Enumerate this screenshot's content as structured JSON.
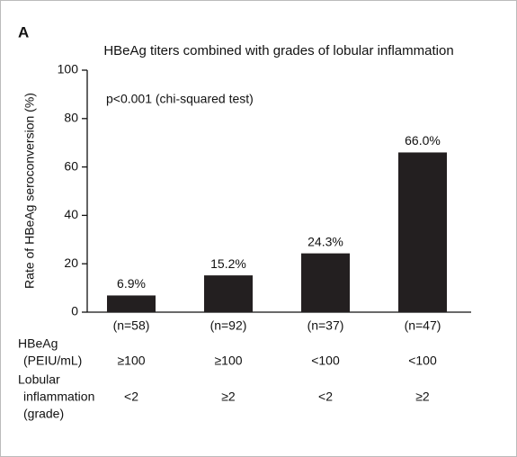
{
  "panel_label": "A",
  "chart_data": {
    "type": "bar",
    "title": "HBeAg titers combined with grades of lobular inflammation",
    "annotation": "p<0.001 (chi-squared test)",
    "y_label": "Rate of HBeAg seroconversion (%)",
    "categories": [
      "(n=58)",
      "(n=92)",
      "(n=37)",
      "(n=47)"
    ],
    "values": [
      6.9,
      15.2,
      24.3,
      66.0
    ],
    "value_labels": [
      "6.9%",
      "15.2%",
      "24.3%",
      "66.0%"
    ],
    "color": "#231f20",
    "ylim": [
      0,
      100
    ],
    "yticks": [
      0,
      20,
      40,
      60,
      80,
      100
    ]
  },
  "table_rows": [
    {
      "label_lines": [
        "HBeAg",
        "(PEIU/mL)"
      ],
      "cells": [
        "≥100",
        "≥100",
        "<100",
        "<100"
      ]
    },
    {
      "label_lines": [
        "Lobular",
        "inflammation",
        "(grade)"
      ],
      "cells": [
        "<2",
        "≥2",
        "<2",
        "≥2"
      ]
    }
  ]
}
